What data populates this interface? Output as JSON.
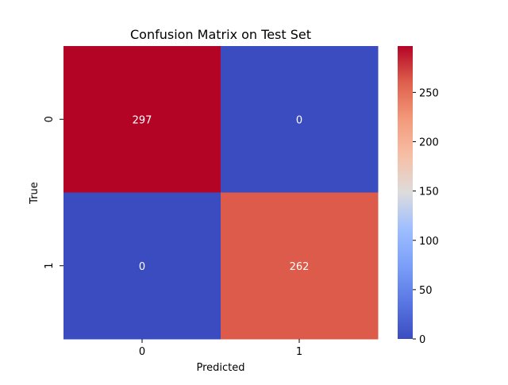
{
  "chart_data": {
    "type": "heatmap",
    "title": "Confusion Matrix on Test Set",
    "xlabel": "Predicted",
    "ylabel": "True",
    "x_categories": [
      "0",
      "1"
    ],
    "y_categories": [
      "0",
      "1"
    ],
    "values": [
      [
        297,
        0
      ],
      [
        0,
        262
      ]
    ],
    "colormap": "coolwarm",
    "colorbar": {
      "min": 0,
      "max": 297,
      "ticks": [
        0,
        50,
        100,
        150,
        200,
        250
      ],
      "tick_labels": [
        "0",
        "50",
        "100",
        "150",
        "200",
        "250"
      ]
    },
    "grid": false
  }
}
